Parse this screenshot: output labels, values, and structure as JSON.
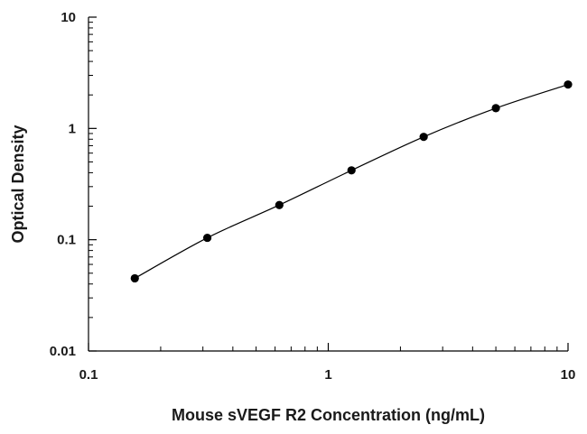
{
  "chart_data": {
    "type": "scatter",
    "title": "",
    "xlabel": "Mouse sVEGF R2 Concentration (ng/mL)",
    "ylabel": "Optical Density",
    "xscale": "log",
    "yscale": "log",
    "xlim": [
      0.1,
      10
    ],
    "ylim": [
      0.01,
      10
    ],
    "grid": false,
    "legend": "none",
    "x_ticks": [
      {
        "value": 0.1,
        "label": "0.1"
      },
      {
        "value": 1,
        "label": "1"
      },
      {
        "value": 10,
        "label": "10"
      }
    ],
    "y_ticks": [
      {
        "value": 0.01,
        "label": "0.01"
      },
      {
        "value": 0.1,
        "label": "0.1"
      },
      {
        "value": 1,
        "label": "1"
      },
      {
        "value": 10,
        "label": "10"
      }
    ],
    "series": [
      {
        "x": [
          0.156,
          0.313,
          0.625,
          1.25,
          2.5,
          5,
          10
        ],
        "y": [
          0.045,
          0.104,
          0.205,
          0.42,
          0.84,
          1.52,
          2.48
        ],
        "marker": "circle",
        "fit": "smooth curve"
      }
    ],
    "colors": {
      "points": "#000000",
      "curve": "#000000",
      "axes": "#000000"
    }
  }
}
